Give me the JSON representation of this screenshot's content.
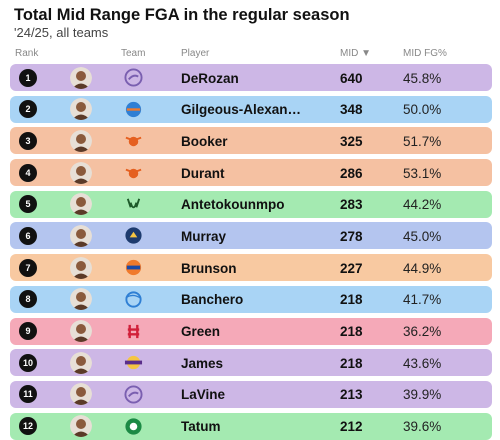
{
  "title": "Total Mid Range FGA in the regular season",
  "subtitle": "'24/25, all teams",
  "columns": {
    "rank": "Rank",
    "team": "Team",
    "player": "Player",
    "mid": "MID ▼",
    "fg": "MID FG%"
  },
  "chart_data": {
    "type": "table",
    "title": "Total Mid Range FGA in the regular season",
    "subtitle": "'24/25, all teams",
    "rows": [
      {
        "rank": "1",
        "team": "SAC",
        "player": "DeRozan",
        "mid": "640",
        "fg": "45.8%",
        "color": "#cdb7e6"
      },
      {
        "rank": "2",
        "team": "OKC",
        "player": "Gilgeous-Alexan…",
        "mid": "348",
        "fg": "50.0%",
        "color": "#a9d4f5"
      },
      {
        "rank": "3",
        "team": "PHX",
        "player": "Booker",
        "mid": "325",
        "fg": "51.7%",
        "color": "#f5c1a2"
      },
      {
        "rank": "4",
        "team": "PHX",
        "player": "Durant",
        "mid": "286",
        "fg": "53.1%",
        "color": "#f5c1a2"
      },
      {
        "rank": "5",
        "team": "MIL",
        "player": "Antetokounmpo",
        "mid": "283",
        "fg": "44.2%",
        "color": "#a4eab1"
      },
      {
        "rank": "6",
        "team": "DEN",
        "player": "Murray",
        "mid": "278",
        "fg": "45.0%",
        "color": "#b4c5ef"
      },
      {
        "rank": "7",
        "team": "NYK",
        "player": "Brunson",
        "mid": "227",
        "fg": "44.9%",
        "color": "#f8c9a1"
      },
      {
        "rank": "8",
        "team": "ORL",
        "player": "Banchero",
        "mid": "218",
        "fg": "41.7%",
        "color": "#a9d4f5"
      },
      {
        "rank": "9",
        "team": "HOU",
        "player": "Green",
        "mid": "218",
        "fg": "36.2%",
        "color": "#f5a9b8"
      },
      {
        "rank": "10",
        "team": "LAL",
        "player": "James",
        "mid": "218",
        "fg": "43.6%",
        "color": "#cdb7e6"
      },
      {
        "rank": "11",
        "team": "SAC",
        "player": "LaVine",
        "mid": "213",
        "fg": "39.9%",
        "color": "#cdb7e6"
      },
      {
        "rank": "12",
        "team": "BOS",
        "player": "Tatum",
        "mid": "212",
        "fg": "39.6%",
        "color": "#a4eab1"
      }
    ]
  }
}
